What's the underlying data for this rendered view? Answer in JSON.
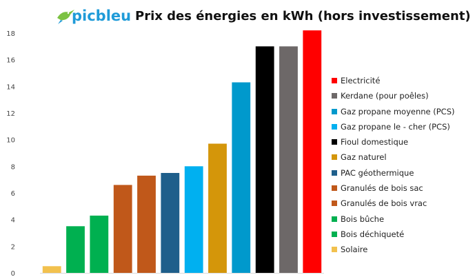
{
  "logo": {
    "text": "picbleu",
    "icon": "hummingbird-icon",
    "color": "#1f9bd8"
  },
  "chart_data": {
    "type": "bar",
    "title": "Prix des énergies en kWh (hors investissement)",
    "xlabel": "",
    "ylabel": "",
    "ylim": [
      0,
      18
    ],
    "yticks": [
      0,
      2,
      4,
      6,
      8,
      10,
      12,
      14,
      16,
      18
    ],
    "grid": false,
    "legend_position": "right",
    "categories": [
      "Solaire",
      "Bois déchiqueté",
      "Bois bûche",
      "Granulés de bois vrac",
      "Granulés de bois sac",
      "PAC géothermique",
      "Gaz propane le - cher (PCS)",
      "Gaz naturel",
      "Gaz propane moyenne (PCS)",
      "Fioul domestique",
      "Kerdane (pour poêles)",
      "Electricité"
    ],
    "values": [
      0.5,
      3.5,
      4.3,
      6.6,
      7.3,
      7.5,
      8.0,
      9.7,
      14.3,
      17.0,
      17.0,
      18.2
    ],
    "colors": [
      "#f2c14e",
      "#00b050",
      "#00b050",
      "#c0581a",
      "#c0581a",
      "#1f5f8b",
      "#00b0f0",
      "#d4960a",
      "#0099cc",
      "#000000",
      "#6d6868",
      "#ff0000"
    ],
    "legend": [
      {
        "label": "Electricité",
        "color": "#ff0000"
      },
      {
        "label": "Kerdane (pour poêles)",
        "color": "#6d6868"
      },
      {
        "label": "Gaz propane moyenne (PCS)",
        "color": "#0099cc"
      },
      {
        "label": "Gaz propane le - cher (PCS)",
        "color": "#00b0f0"
      },
      {
        "label": "Fioul domestique",
        "color": "#000000"
      },
      {
        "label": "Gaz naturel",
        "color": "#d4960a"
      },
      {
        "label": "PAC géothermique",
        "color": "#1f5f8b"
      },
      {
        "label": "Granulés de bois sac",
        "color": "#c0581a"
      },
      {
        "label": "Granulés de bois vrac",
        "color": "#c0581a"
      },
      {
        "label": "Bois bûche",
        "color": "#00b050"
      },
      {
        "label": "Bois déchiqueté",
        "color": "#00b050"
      },
      {
        "label": "Solaire",
        "color": "#f2c14e"
      }
    ]
  }
}
